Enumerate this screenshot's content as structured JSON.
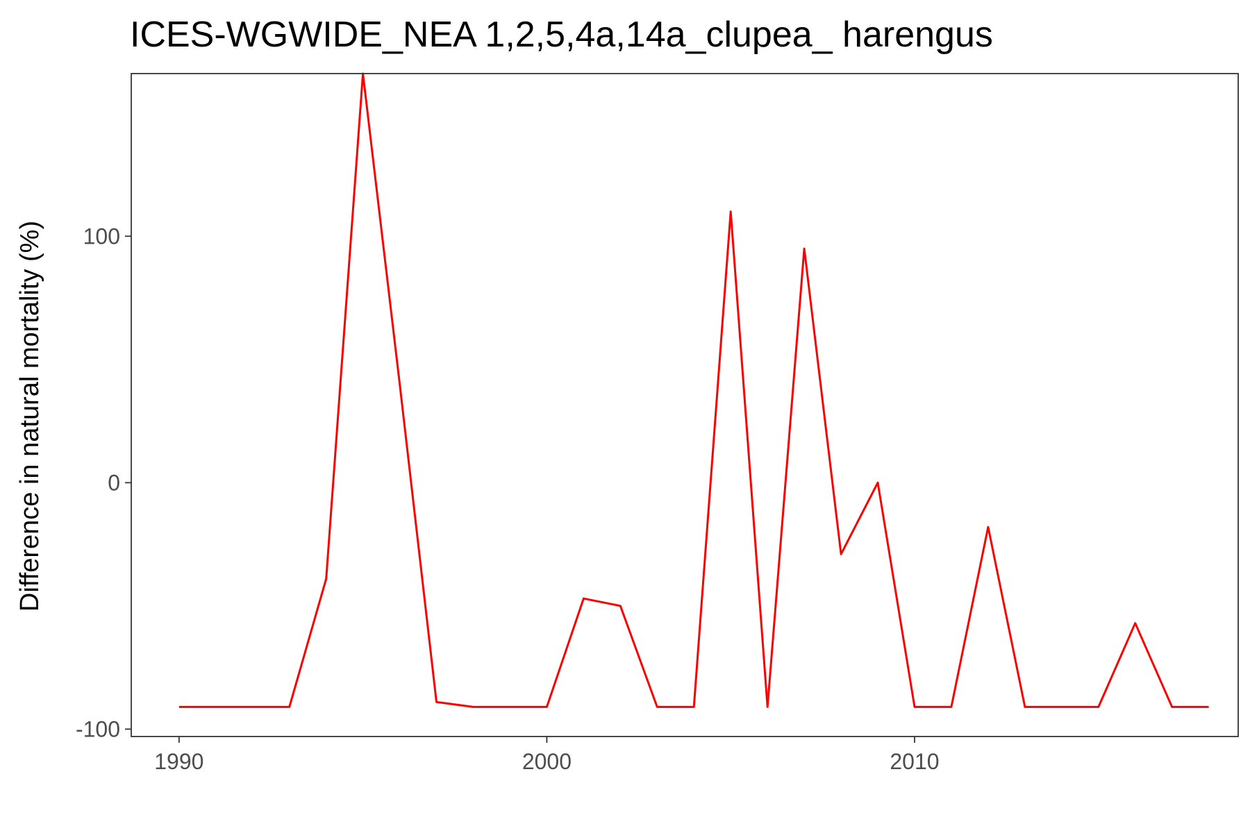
{
  "chart_data": {
    "type": "line",
    "title": "ICES-WGWIDE_NEA 1,2,5,4a,14a_clupea_ harengus",
    "xlabel": "",
    "ylabel": "Difference in natural mortality (%)",
    "xlim": [
      1988.7,
      2018.8
    ],
    "ylim": [
      -103,
      166
    ],
    "xticks": [
      1990,
      2000,
      2010
    ],
    "yticks": [
      -100,
      0,
      100
    ],
    "grid": false,
    "legend": "none",
    "series": [
      {
        "color": "#ff0000",
        "x": [
          1990,
          1991,
          1992,
          1993,
          1994,
          1995,
          1996,
          1997,
          1998,
          1999,
          2000,
          2001,
          2002,
          2003,
          2004,
          2005,
          2006,
          2007,
          2008,
          2009,
          2010,
          2011,
          2012,
          2013,
          2014,
          2015,
          2016,
          2017,
          2018
        ],
        "y": [
          -91,
          -91,
          -91,
          -91,
          -39,
          166,
          40,
          -89,
          -91,
          -91,
          -91,
          -47,
          -50,
          -91,
          -91,
          110,
          -91,
          95,
          -29,
          0,
          -91,
          -91,
          -18,
          -91,
          -91,
          -91,
          -57,
          -91,
          -91
        ]
      }
    ]
  }
}
